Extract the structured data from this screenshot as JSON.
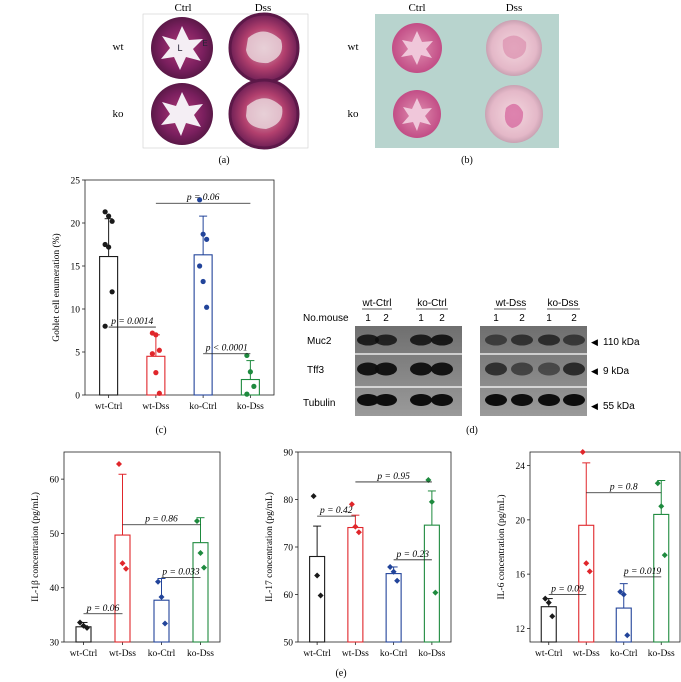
{
  "panels": {
    "a": {
      "caption": "(a)",
      "col_labels": [
        "Ctrl",
        "Dss"
      ],
      "row_labels": [
        "wt",
        "ko"
      ],
      "inset_letters": [
        "L",
        "E"
      ]
    },
    "b": {
      "caption": "(b)",
      "col_labels": [
        "Ctrl",
        "Dss"
      ],
      "row_labels": [
        "wt",
        "ko"
      ]
    },
    "d": {
      "caption": "(d)",
      "row_header": "No.mouse",
      "groups": [
        "wt-Ctrl",
        "ko-Ctrl",
        "wt-Dss",
        "ko-Dss"
      ],
      "lane_numbers": [
        "1",
        "2",
        "1",
        "2",
        "1",
        "2",
        "1",
        "2"
      ],
      "bands": [
        {
          "name": "Muc2",
          "size": "110 kDa"
        },
        {
          "name": "Tff3",
          "size": "9 kDa"
        },
        {
          "name": "Tubulin",
          "size": "55 kDa"
        }
      ]
    },
    "e_caption": "(e)"
  },
  "colors": {
    "wt-Ctrl": "#1a1a1a",
    "wt-Dss": "#e0262b",
    "ko-Ctrl": "#22449a",
    "ko-Dss": "#1e8a3e"
  },
  "chart_data": [
    {
      "id": "c",
      "type": "bar",
      "caption": "(c)",
      "ylabel": "Goblet cell enumeration (%)",
      "ylim": [
        0,
        25
      ],
      "yticks": [
        0,
        5,
        10,
        15,
        20,
        25
      ],
      "categories": [
        "wt-Ctrl",
        "wt-Dss",
        "ko-Ctrl",
        "ko-Dss"
      ],
      "values": [
        16.1,
        4.5,
        16.3,
        1.8
      ],
      "errors": [
        4.4,
        2.5,
        4.5,
        2.2
      ],
      "points": [
        [
          21.3,
          20.8,
          20.2,
          17.5,
          17.2,
          12.0,
          8.0
        ],
        [
          7.2,
          7.0,
          5.2,
          4.8,
          2.6,
          0.2
        ],
        [
          22.7,
          18.7,
          18.1,
          15.0,
          13.2,
          10.2
        ],
        [
          4.6,
          2.7,
          1.0,
          0.1
        ]
      ],
      "marker": "circle",
      "annotations": [
        {
          "text": "p = 0.0014",
          "from": 0,
          "to": 1,
          "y": 7.9
        },
        {
          "text": "p = 0.06",
          "from": 1,
          "to": 3,
          "y": 22.3
        },
        {
          "text": "p < 0.0001",
          "from": 2,
          "to": 3,
          "y": 4.8
        }
      ]
    },
    {
      "id": "e1",
      "type": "bar",
      "ylabel": "IL-1β concentration (pg/mL)",
      "ylim": [
        30,
        65
      ],
      "yticks": [
        30,
        40,
        50,
        60
      ],
      "categories": [
        "wt-Ctrl",
        "wt-Dss",
        "ko-Ctrl",
        "ko-Dss"
      ],
      "values": [
        32.8,
        49.7,
        37.7,
        48.3
      ],
      "errors": [
        0.8,
        11.2,
        4.0,
        4.6
      ],
      "points": [
        [
          33.6,
          33.0,
          32.6
        ],
        [
          62.8,
          44.5,
          43.5
        ],
        [
          41.1,
          38.3,
          33.4
        ],
        [
          52.3,
          46.4,
          43.7
        ]
      ],
      "marker": "diamond",
      "annotations": [
        {
          "text": "p = 0.06",
          "from": 0,
          "to": 1,
          "y": 35.2
        },
        {
          "text": "p = 0.86",
          "from": 1,
          "to": 3,
          "y": 51.6
        },
        {
          "text": "p = 0.033",
          "from": 2,
          "to": 3,
          "y": 41.9
        }
      ]
    },
    {
      "id": "e2",
      "type": "bar",
      "ylabel": "IL-17 concentration (pg/mL)",
      "ylim": [
        50,
        90
      ],
      "yticks": [
        50,
        60,
        70,
        80,
        90
      ],
      "categories": [
        "wt-Ctrl",
        "wt-Dss",
        "ko-Ctrl",
        "ko-Dss"
      ],
      "values": [
        68.0,
        74.1,
        64.4,
        74.6
      ],
      "errors": [
        6.4,
        2.6,
        1.4,
        7.2
      ],
      "points": [
        [
          80.7,
          64.0,
          59.8
        ],
        [
          79.0,
          74.3,
          73.1
        ],
        [
          65.8,
          64.8,
          62.9
        ],
        [
          84.1,
          79.5,
          60.4
        ]
      ],
      "marker": "diamond",
      "annotations": [
        {
          "text": "p = 0.42",
          "from": 0,
          "to": 1,
          "y": 76.5
        },
        {
          "text": "p = 0.95",
          "from": 1,
          "to": 3,
          "y": 83.7
        },
        {
          "text": "p = 0.23",
          "from": 2,
          "to": 3,
          "y": 67.3
        }
      ]
    },
    {
      "id": "e3",
      "type": "bar",
      "ylabel": "IL-6 concentration (pg/mL)",
      "ylim": [
        11,
        25
      ],
      "yticks": [
        12,
        16,
        20,
        24
      ],
      "categories": [
        "wt-Ctrl",
        "wt-Dss",
        "ko-Ctrl",
        "ko-Dss"
      ],
      "values": [
        13.6,
        19.6,
        13.5,
        20.4
      ],
      "errors": [
        0.6,
        4.6,
        1.8,
        2.5
      ],
      "points": [
        [
          14.2,
          13.9,
          12.9
        ],
        [
          25.0,
          16.8,
          16.2
        ],
        [
          14.7,
          14.5,
          11.5
        ],
        [
          22.7,
          21.0,
          17.4
        ]
      ],
      "marker": "diamond",
      "annotations": [
        {
          "text": "p = 0.09",
          "from": 0,
          "to": 1,
          "y": 14.5
        },
        {
          "text": "p = 0.8",
          "from": 1,
          "to": 3,
          "y": 22.0
        },
        {
          "text": "p = 0.019",
          "from": 2,
          "to": 3,
          "y": 15.8
        }
      ]
    }
  ]
}
